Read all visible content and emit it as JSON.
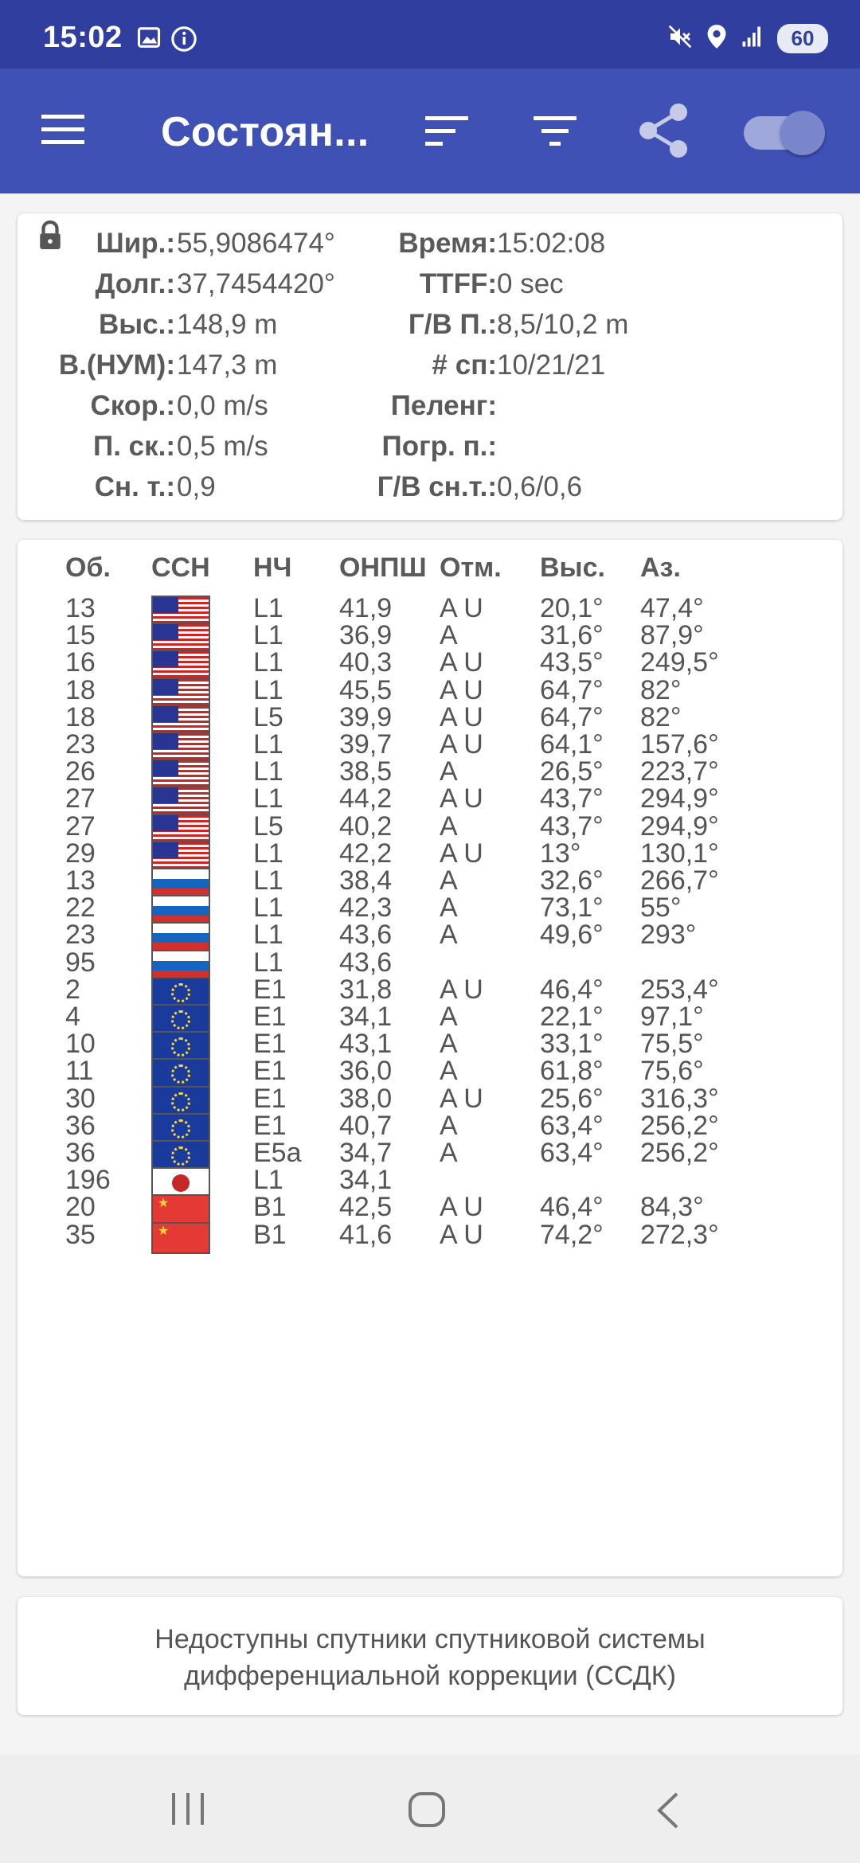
{
  "status_bar": {
    "time": "15:02",
    "battery": "60",
    "icons": [
      "image-icon",
      "info-icon",
      "mute-icon",
      "location-icon",
      "signal-icon",
      "battery-icon"
    ]
  },
  "app_bar": {
    "title": "Состоян...",
    "icons": [
      "menu-icon",
      "sort-icon",
      "filter-icon",
      "share-icon",
      "toggle-switch"
    ],
    "toggle_on": true
  },
  "status": {
    "left": [
      {
        "label": "Шир.:",
        "value": "55,9086474°"
      },
      {
        "label": "Долг.:",
        "value": "37,7454420°"
      },
      {
        "label": "Выс.:",
        "value": "148,9 m"
      },
      {
        "label": "В.(НУМ):",
        "value": "147,3 m"
      },
      {
        "label": "Скор.:",
        "value": "0,0 m/s"
      },
      {
        "label": "П. ск.:",
        "value": "0,5 m/s"
      },
      {
        "label": "Сн. т.:",
        "value": "0,9"
      }
    ],
    "right": [
      {
        "label": "Время:",
        "value": "15:02:08"
      },
      {
        "label": "TTFF:",
        "value": "0 sec"
      },
      {
        "label": "Г/В П.:",
        "value": "8,5/10,2 m"
      },
      {
        "label": "# сп:",
        "value": "10/21/21"
      },
      {
        "label": "Пеленг:",
        "value": ""
      },
      {
        "label": "Погр. п.:",
        "value": ""
      },
      {
        "label": "Г/В сн.т.:",
        "value": "0,6/0,6"
      }
    ]
  },
  "satellites": {
    "headers": {
      "id": "Об.",
      "gnss": "ССН",
      "freq": "НЧ",
      "cn0": "ОНПШ",
      "flags": "Отм.",
      "elev": "Выс.",
      "az": "Аз."
    },
    "rows": [
      {
        "id": "13",
        "flag": "us",
        "freq": "L1",
        "cn0": "41,9",
        "flags": "A U",
        "elev": "20,1°",
        "az": "47,4°"
      },
      {
        "id": "15",
        "flag": "us",
        "freq": "L1",
        "cn0": "36,9",
        "flags": "A",
        "elev": "31,6°",
        "az": "87,9°"
      },
      {
        "id": "16",
        "flag": "us",
        "freq": "L1",
        "cn0": "40,3",
        "flags": "A U",
        "elev": "43,5°",
        "az": "249,5°"
      },
      {
        "id": "18",
        "flag": "us",
        "freq": "L1",
        "cn0": "45,5",
        "flags": "A U",
        "elev": "64,7°",
        "az": "82°"
      },
      {
        "id": "18",
        "flag": "us",
        "freq": "L5",
        "cn0": "39,9",
        "flags": "A U",
        "elev": "64,7°",
        "az": "82°"
      },
      {
        "id": "23",
        "flag": "us",
        "freq": "L1",
        "cn0": "39,7",
        "flags": "A U",
        "elev": "64,1°",
        "az": "157,6°"
      },
      {
        "id": "26",
        "flag": "us",
        "freq": "L1",
        "cn0": "38,5",
        "flags": "A",
        "elev": "26,5°",
        "az": "223,7°"
      },
      {
        "id": "27",
        "flag": "us",
        "freq": "L1",
        "cn0": "44,2",
        "flags": "A U",
        "elev": "43,7°",
        "az": "294,9°"
      },
      {
        "id": "27",
        "flag": "us",
        "freq": "L5",
        "cn0": "40,2",
        "flags": "A",
        "elev": "43,7°",
        "az": "294,9°"
      },
      {
        "id": "29",
        "flag": "us",
        "freq": "L1",
        "cn0": "42,2",
        "flags": "A U",
        "elev": "13°",
        "az": "130,1°"
      },
      {
        "id": "13",
        "flag": "ru",
        "freq": "L1",
        "cn0": "38,4",
        "flags": "A",
        "elev": "32,6°",
        "az": "266,7°"
      },
      {
        "id": "22",
        "flag": "ru",
        "freq": "L1",
        "cn0": "42,3",
        "flags": "A",
        "elev": "73,1°",
        "az": "55°"
      },
      {
        "id": "23",
        "flag": "ru",
        "freq": "L1",
        "cn0": "43,6",
        "flags": "A",
        "elev": "49,6°",
        "az": "293°"
      },
      {
        "id": "95",
        "flag": "ru",
        "freq": "L1",
        "cn0": "43,6",
        "flags": "",
        "elev": "",
        "az": ""
      },
      {
        "id": "2",
        "flag": "eu",
        "freq": "E1",
        "cn0": "31,8",
        "flags": "A U",
        "elev": "46,4°",
        "az": "253,4°"
      },
      {
        "id": "4",
        "flag": "eu",
        "freq": "E1",
        "cn0": "34,1",
        "flags": "A",
        "elev": "22,1°",
        "az": "97,1°"
      },
      {
        "id": "10",
        "flag": "eu",
        "freq": "E1",
        "cn0": "43,1",
        "flags": "A",
        "elev": "33,1°",
        "az": "75,5°"
      },
      {
        "id": "11",
        "flag": "eu",
        "freq": "E1",
        "cn0": "36,0",
        "flags": "A",
        "elev": "61,8°",
        "az": "75,6°"
      },
      {
        "id": "30",
        "flag": "eu",
        "freq": "E1",
        "cn0": "38,0",
        "flags": "A U",
        "elev": "25,6°",
        "az": "316,3°"
      },
      {
        "id": "36",
        "flag": "eu",
        "freq": "E1",
        "cn0": "40,7",
        "flags": "A",
        "elev": "63,4°",
        "az": "256,2°"
      },
      {
        "id": "36",
        "flag": "eu",
        "freq": "E5a",
        "cn0": "34,7",
        "flags": "A",
        "elev": "63,4°",
        "az": "256,2°"
      },
      {
        "id": "196",
        "flag": "jp",
        "freq": "L1",
        "cn0": "34,1",
        "flags": "",
        "elev": "",
        "az": ""
      },
      {
        "id": "20",
        "flag": "cn",
        "freq": "B1",
        "cn0": "42,5",
        "flags": "A U",
        "elev": "46,4°",
        "az": "84,3°"
      },
      {
        "id": "35",
        "flag": "cn",
        "freq": "B1",
        "cn0": "41,6",
        "flags": "A U",
        "elev": "74,2°",
        "az": "272,3°"
      }
    ]
  },
  "sbas": {
    "line1": "Недоступны спутники спутниковой системы",
    "line2": "дифференциальной коррекции (ССДК)"
  },
  "colors": {
    "status_bar": "#303f9f",
    "app_bar": "#3f51b5",
    "background": "#f4f4f4"
  }
}
